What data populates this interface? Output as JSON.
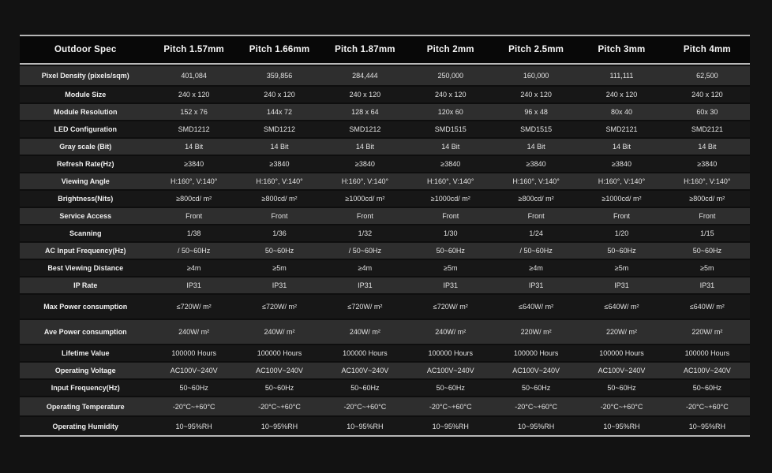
{
  "table": {
    "header": [
      "Outdoor Spec",
      "Pitch 1.57mm",
      "Pitch 1.66mm",
      "Pitch 1.87mm",
      "Pitch 2mm",
      "Pitch 2.5mm",
      "Pitch 3mm",
      "Pitch 4mm"
    ],
    "rows": [
      {
        "label": "Pixel Density (pixels/sqm)",
        "values": [
          "401,084",
          "359,856",
          "284,444",
          "250,000",
          "160,000",
          "111,111",
          "62,500"
        ]
      },
      {
        "label": "Module Size",
        "values": [
          "240 x 120",
          "240 x 120",
          "240 x 120",
          "240 x 120",
          "240 x 120",
          "240 x 120",
          "240 x 120"
        ]
      },
      {
        "label": "Module Resolution",
        "values": [
          "152 x 76",
          "144x 72",
          "128 x 64",
          "120x 60",
          "96 x 48",
          "80x 40",
          "60x 30"
        ]
      },
      {
        "label": "LED Configuration",
        "values": [
          "SMD1212",
          "SMD1212",
          "SMD1212",
          "SMD1515",
          "SMD1515",
          "SMD2121",
          "SMD2121"
        ]
      },
      {
        "label": "Gray scale (Bit)",
        "values": [
          "14 Bit",
          "14 Bit",
          "14 Bit",
          "14 Bit",
          "14 Bit",
          "14 Bit",
          "14 Bit"
        ]
      },
      {
        "label": "Refresh Rate(Hz)",
        "values": [
          "≥3840",
          "≥3840",
          "≥3840",
          "≥3840",
          "≥3840",
          "≥3840",
          "≥3840"
        ]
      },
      {
        "label": "Viewing Angle",
        "values": [
          "H:160°, V:140°",
          "H:160°, V:140°",
          "H:160°, V:140°",
          "H:160°, V:140°",
          "H:160°, V:140°",
          "H:160°, V:140°",
          "H:160°, V:140°"
        ]
      },
      {
        "label": "Brightness(Nits)",
        "values": [
          "≥800cd/ m²",
          "≥800cd/ m²",
          "≥1000cd/ m²",
          "≥1000cd/ m²",
          "≥800cd/ m²",
          "≥1000cd/ m²",
          "≥800cd/ m²"
        ]
      },
      {
        "label": "Service Access",
        "values": [
          "Front",
          "Front",
          "Front",
          "Front",
          "Front",
          "Front",
          "Front"
        ]
      },
      {
        "label": "Scanning",
        "values": [
          "1/38",
          "1/36",
          "1/32",
          "1/30",
          "1/24",
          "1/20",
          "1/15"
        ]
      },
      {
        "label": "AC Input Frequency(Hz)",
        "values": [
          "/ 50~60Hz",
          "50~60Hz",
          "/ 50~60Hz",
          "50~60Hz",
          "/ 50~60Hz",
          "50~60Hz",
          "50~60Hz"
        ]
      },
      {
        "label": "Best Viewing Distance",
        "values": [
          "≥4m",
          "≥5m",
          "≥4m",
          "≥5m",
          "≥4m",
          "≥5m",
          "≥5m"
        ]
      },
      {
        "label": "IP Rate",
        "values": [
          "IP31",
          "IP31",
          "IP31",
          "IP31",
          "IP31",
          "IP31",
          "IP31"
        ]
      },
      {
        "label": "Max Power consumption",
        "values": [
          "≤720W/ m²",
          "≤720W/ m²",
          "≤720W/ m²",
          "≤720W/ m²",
          "≤640W/ m²",
          "≤640W/ m²",
          "≤640W/ m²"
        ]
      },
      {
        "label": "Ave  Power consumption",
        "values": [
          "240W/ m²",
          "240W/ m²",
          "240W/ m²",
          "240W/ m²",
          "220W/ m²",
          "220W/ m²",
          "220W/ m²"
        ]
      },
      {
        "label": "Lifetime Value",
        "values": [
          "100000 Hours",
          "100000 Hours",
          "100000 Hours",
          "100000 Hours",
          "100000 Hours",
          "100000 Hours",
          "100000 Hours"
        ]
      },
      {
        "label": "Operating Voltage",
        "values": [
          "AC100V~240V",
          "AC100V~240V",
          "AC100V~240V",
          "AC100V~240V",
          "AC100V~240V",
          "AC100V~240V",
          "AC100V~240V"
        ]
      },
      {
        "label": "Input Frequency(Hz)",
        "values": [
          "50~60Hz",
          "50~60Hz",
          "50~60Hz",
          "50~60Hz",
          "50~60Hz",
          "50~60Hz",
          "50~60Hz"
        ]
      },
      {
        "label": "Operating Temperature",
        "values": [
          "-20°C~+60°C",
          "-20°C~+60°C",
          "-20°C~+60°C",
          "-20°C~+60°C",
          "-20°C~+60°C",
          "-20°C~+60°C",
          "-20°C~+60°C"
        ]
      },
      {
        "label": "Operating Humidity",
        "values": [
          "10~95%RH",
          "10~95%RH",
          "10~95%RH",
          "10~95%RH",
          "10~95%RH",
          "10~95%RH",
          "10~95%RH"
        ]
      }
    ],
    "colors": {
      "page_background": "#121212",
      "header_background": "#080808",
      "row_light": "#2e2e2e",
      "row_dark": "#171717",
      "rule_line": "#d9d9d9",
      "text": "#e3e3e3"
    }
  }
}
